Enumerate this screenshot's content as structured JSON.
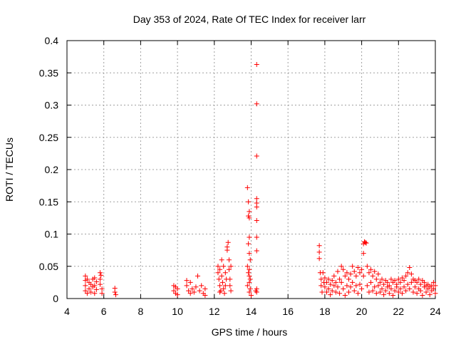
{
  "chart_data": {
    "type": "scatter",
    "title": "Day 353 of 2024, Rate Of TEC Index for receiver larr",
    "xlabel": "GPS time / hours",
    "ylabel": "ROTI / TECUs",
    "xlim": [
      4,
      24
    ],
    "ylim": [
      0,
      0.4
    ],
    "xticks": [
      4,
      6,
      8,
      10,
      12,
      14,
      16,
      18,
      20,
      22,
      24
    ],
    "yticks": [
      0,
      0.05,
      0.1,
      0.15,
      0.2,
      0.25,
      0.3,
      0.35,
      0.4
    ],
    "ytick_labels": [
      "0",
      "0.05",
      "0.1",
      "0.15",
      "0.2",
      "0.25",
      "0.3",
      "0.35",
      "0.4"
    ],
    "grid": true,
    "marker": "+",
    "color": "#ff0000",
    "series": [
      {
        "name": "ROTI",
        "points": [
          [
            5.0,
            0.035
          ],
          [
            5.0,
            0.028
          ],
          [
            5.0,
            0.02
          ],
          [
            5.0,
            0.012
          ],
          [
            5.1,
            0.03
          ],
          [
            5.1,
            0.008
          ],
          [
            5.2,
            0.025
          ],
          [
            5.2,
            0.015
          ],
          [
            5.3,
            0.022
          ],
          [
            5.3,
            0.01
          ],
          [
            5.4,
            0.03
          ],
          [
            5.4,
            0.018
          ],
          [
            5.5,
            0.032
          ],
          [
            5.5,
            0.02
          ],
          [
            5.5,
            0.008
          ],
          [
            5.6,
            0.026
          ],
          [
            5.6,
            0.014
          ],
          [
            5.8,
            0.04
          ],
          [
            5.8,
            0.03
          ],
          [
            5.8,
            0.022
          ],
          [
            5.9,
            0.015
          ],
          [
            5.9,
            0.008
          ],
          [
            5.85,
            0.036
          ],
          [
            6.6,
            0.016
          ],
          [
            6.6,
            0.01
          ],
          [
            6.65,
            0.006
          ],
          [
            9.8,
            0.02
          ],
          [
            9.8,
            0.012
          ],
          [
            9.9,
            0.018
          ],
          [
            9.9,
            0.008
          ],
          [
            10.0,
            0.015
          ],
          [
            10.0,
            0.006
          ],
          [
            10.5,
            0.028
          ],
          [
            10.5,
            0.02
          ],
          [
            10.6,
            0.012
          ],
          [
            10.7,
            0.025
          ],
          [
            10.7,
            0.008
          ],
          [
            10.8,
            0.015
          ],
          [
            10.9,
            0.01
          ],
          [
            11.0,
            0.018
          ],
          [
            11.1,
            0.035
          ],
          [
            11.2,
            0.012
          ],
          [
            11.3,
            0.02
          ],
          [
            11.4,
            0.008
          ],
          [
            11.5,
            0.015
          ],
          [
            11.5,
            0.005
          ],
          [
            12.2,
            0.05
          ],
          [
            12.2,
            0.04
          ],
          [
            12.25,
            0.03
          ],
          [
            12.3,
            0.045
          ],
          [
            12.3,
            0.02
          ],
          [
            12.35,
            0.012
          ],
          [
            12.4,
            0.06
          ],
          [
            12.4,
            0.035
          ],
          [
            12.45,
            0.025
          ],
          [
            12.5,
            0.015
          ],
          [
            12.5,
            0.05
          ],
          [
            12.55,
            0.008
          ],
          [
            12.6,
            0.04
          ],
          [
            12.65,
            0.03
          ],
          [
            12.7,
            0.08
          ],
          [
            12.7,
            0.075
          ],
          [
            12.75,
            0.087
          ],
          [
            12.8,
            0.06
          ],
          [
            12.8,
            0.045
          ],
          [
            12.85,
            0.03
          ],
          [
            12.85,
            0.02
          ],
          [
            12.9,
            0.012
          ],
          [
            12.9,
            0.05
          ],
          [
            12.6,
            0.02
          ],
          [
            12.3,
            0.01
          ],
          [
            13.8,
            0.172
          ],
          [
            13.85,
            0.15
          ],
          [
            13.9,
            0.135
          ],
          [
            13.85,
            0.128
          ],
          [
            13.9,
            0.125
          ],
          [
            13.9,
            0.095
          ],
          [
            13.85,
            0.085
          ],
          [
            13.9,
            0.07
          ],
          [
            13.95,
            0.06
          ],
          [
            13.8,
            0.05
          ],
          [
            13.9,
            0.045
          ],
          [
            13.85,
            0.04
          ],
          [
            13.9,
            0.035
          ],
          [
            13.95,
            0.03
          ],
          [
            13.9,
            0.025
          ],
          [
            13.8,
            0.02
          ],
          [
            13.95,
            0.015
          ],
          [
            13.9,
            0.01
          ],
          [
            14.0,
            0.005
          ],
          [
            14.3,
            0.363
          ],
          [
            14.3,
            0.302
          ],
          [
            14.3,
            0.221
          ],
          [
            14.3,
            0.155
          ],
          [
            14.3,
            0.148
          ],
          [
            14.3,
            0.142
          ],
          [
            14.3,
            0.121
          ],
          [
            14.3,
            0.095
          ],
          [
            14.3,
            0.074
          ],
          [
            14.3,
            0.015
          ],
          [
            14.3,
            0.01
          ],
          [
            14.25,
            0.012
          ],
          [
            17.7,
            0.082
          ],
          [
            17.7,
            0.072
          ],
          [
            17.7,
            0.062
          ],
          [
            17.75,
            0.04
          ],
          [
            17.8,
            0.03
          ],
          [
            17.8,
            0.02
          ],
          [
            17.85,
            0.01
          ],
          [
            17.9,
            0.04
          ],
          [
            17.95,
            0.025
          ],
          [
            18.0,
            0.032
          ],
          [
            18.0,
            0.018
          ],
          [
            18.1,
            0.025
          ],
          [
            18.1,
            0.01
          ],
          [
            18.2,
            0.03
          ],
          [
            18.2,
            0.015
          ],
          [
            18.3,
            0.022
          ],
          [
            18.3,
            0.006
          ],
          [
            18.4,
            0.028
          ],
          [
            18.4,
            0.012
          ],
          [
            18.5,
            0.035
          ],
          [
            18.5,
            0.02
          ],
          [
            18.6,
            0.025
          ],
          [
            18.6,
            0.01
          ],
          [
            18.7,
            0.042
          ],
          [
            18.7,
            0.018
          ],
          [
            18.8,
            0.03
          ],
          [
            18.8,
            0.008
          ],
          [
            18.9,
            0.05
          ],
          [
            18.9,
            0.025
          ],
          [
            19.0,
            0.045
          ],
          [
            19.0,
            0.015
          ],
          [
            19.1,
            0.035
          ],
          [
            19.1,
            0.005
          ],
          [
            19.2,
            0.04
          ],
          [
            19.2,
            0.02
          ],
          [
            19.3,
            0.03
          ],
          [
            19.3,
            0.01
          ],
          [
            19.4,
            0.038
          ],
          [
            19.4,
            0.018
          ],
          [
            19.5,
            0.05
          ],
          [
            19.5,
            0.025
          ],
          [
            19.6,
            0.042
          ],
          [
            19.6,
            0.012
          ],
          [
            19.7,
            0.035
          ],
          [
            19.7,
            0.02
          ],
          [
            19.8,
            0.048
          ],
          [
            19.8,
            0.008
          ],
          [
            19.9,
            0.04
          ],
          [
            19.9,
            0.022
          ],
          [
            20.0,
            0.045
          ],
          [
            20.0,
            0.015
          ],
          [
            20.1,
            0.07
          ],
          [
            20.1,
            0.035
          ],
          [
            20.15,
            0.088
          ],
          [
            20.2,
            0.087
          ],
          [
            20.25,
            0.086
          ],
          [
            20.1,
            0.085
          ],
          [
            20.3,
            0.05
          ],
          [
            20.3,
            0.02
          ],
          [
            20.4,
            0.04
          ],
          [
            20.4,
            0.01
          ],
          [
            20.5,
            0.045
          ],
          [
            20.5,
            0.025
          ],
          [
            20.6,
            0.035
          ],
          [
            20.6,
            0.012
          ],
          [
            20.7,
            0.042
          ],
          [
            20.7,
            0.018
          ],
          [
            20.8,
            0.03
          ],
          [
            20.8,
            0.008
          ],
          [
            20.9,
            0.038
          ],
          [
            20.9,
            0.02
          ],
          [
            21.0,
            0.025
          ],
          [
            21.0,
            0.01
          ],
          [
            21.1,
            0.03
          ],
          [
            21.1,
            0.015
          ],
          [
            21.2,
            0.022
          ],
          [
            21.2,
            0.006
          ],
          [
            21.3,
            0.028
          ],
          [
            21.3,
            0.012
          ],
          [
            21.4,
            0.025
          ],
          [
            21.4,
            0.018
          ],
          [
            21.5,
            0.02
          ],
          [
            21.5,
            0.008
          ],
          [
            21.6,
            0.03
          ],
          [
            21.6,
            0.015
          ],
          [
            21.7,
            0.025
          ],
          [
            21.7,
            0.005
          ],
          [
            21.8,
            0.028
          ],
          [
            21.8,
            0.012
          ],
          [
            21.9,
            0.022
          ],
          [
            21.9,
            0.018
          ],
          [
            22.0,
            0.03
          ],
          [
            22.0,
            0.01
          ],
          [
            22.1,
            0.025
          ],
          [
            22.1,
            0.015
          ],
          [
            22.2,
            0.032
          ],
          [
            22.2,
            0.008
          ],
          [
            22.3,
            0.028
          ],
          [
            22.3,
            0.018
          ],
          [
            22.4,
            0.035
          ],
          [
            22.4,
            0.012
          ],
          [
            22.5,
            0.04
          ],
          [
            22.5,
            0.022
          ],
          [
            22.6,
            0.048
          ],
          [
            22.6,
            0.015
          ],
          [
            22.7,
            0.038
          ],
          [
            22.7,
            0.025
          ],
          [
            22.8,
            0.03
          ],
          [
            22.8,
            0.01
          ],
          [
            22.9,
            0.028
          ],
          [
            22.9,
            0.018
          ],
          [
            23.0,
            0.025
          ],
          [
            23.0,
            0.008
          ],
          [
            23.1,
            0.03
          ],
          [
            23.1,
            0.015
          ],
          [
            23.2,
            0.022
          ],
          [
            23.2,
            0.012
          ],
          [
            23.3,
            0.028
          ],
          [
            23.3,
            0.005
          ],
          [
            23.4,
            0.025
          ],
          [
            23.4,
            0.018
          ],
          [
            23.5,
            0.02
          ],
          [
            23.5,
            0.01
          ],
          [
            23.6,
            0.022
          ],
          [
            23.6,
            0.015
          ],
          [
            23.7,
            0.018
          ],
          [
            23.7,
            0.006
          ],
          [
            23.8,
            0.02
          ],
          [
            23.8,
            0.012
          ],
          [
            23.9,
            0.025
          ],
          [
            23.9,
            0.015
          ],
          [
            24.0,
            0.02
          ],
          [
            24.0,
            0.008
          ]
        ]
      }
    ]
  }
}
